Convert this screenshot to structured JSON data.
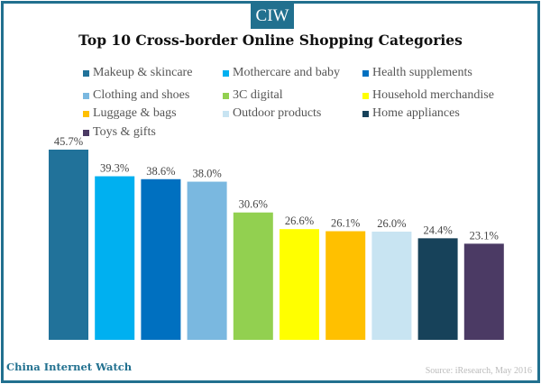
{
  "badge": "CIW",
  "brand": "China Internet Watch",
  "source": "Source: iResearch, May 2016",
  "chart_data": {
    "type": "bar",
    "title": "Top 10 Cross-border Online Shopping Categories",
    "categories": [
      "Makeup & skincare",
      "Mothercare and baby",
      "Health supplements",
      "Clothing and shoes",
      "3C digital",
      "Household merchandise",
      "Luggage & bags",
      "Outdoor products",
      "Home appliances",
      "Toys & gifts"
    ],
    "values": [
      45.7,
      39.3,
      38.6,
      38.0,
      30.6,
      26.6,
      26.1,
      26.0,
      24.4,
      23.1
    ],
    "labels": [
      "45.7%",
      "39.3%",
      "38.6%",
      "38.0%",
      "30.6%",
      "26.6%",
      "26.1%",
      "26.0%",
      "24.4%",
      "23.1%"
    ],
    "colors": [
      "#21729a",
      "#00b0f0",
      "#0070c0",
      "#7ab8e0",
      "#92d050",
      "#ffff00",
      "#ffc000",
      "#c8e4f2",
      "#17425a",
      "#4b3a64"
    ],
    "xlabel": "",
    "ylabel": "",
    "ylim": [
      0,
      50
    ],
    "grid": false,
    "legend_placement": "top"
  }
}
